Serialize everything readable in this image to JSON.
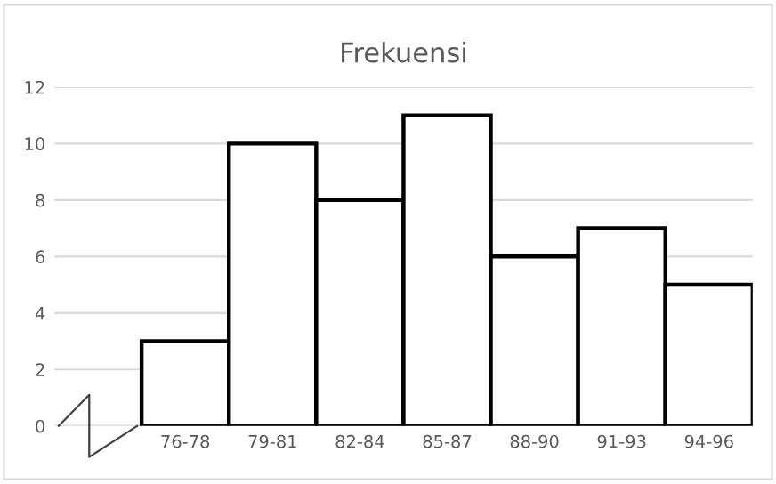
{
  "chart_data": {
    "type": "bar",
    "title": "Frekuensi",
    "categories": [
      null,
      "76-78",
      "79-81",
      "82-84",
      "85-87",
      "88-90",
      "91-93",
      "94-96"
    ],
    "values": [
      null,
      3,
      10,
      8,
      11,
      6,
      7,
      5
    ],
    "color": "#ffffff",
    "ylim": [
      0,
      12
    ],
    "yticks": [
      0,
      2,
      4,
      6,
      8,
      10,
      12
    ],
    "grid": "y"
  }
}
